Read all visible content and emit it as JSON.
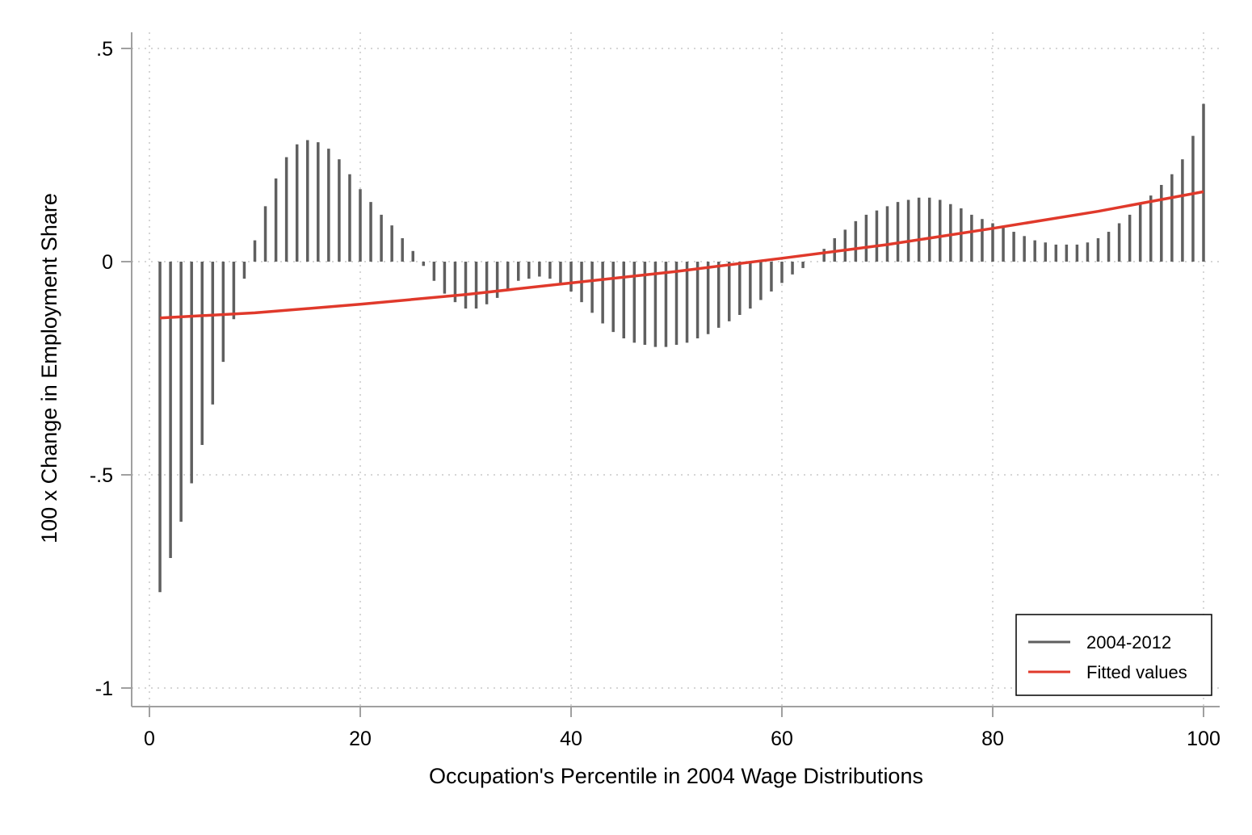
{
  "chart_data": {
    "type": "bar",
    "xlabel": "Occupation's Percentile in 2004 Wage Distributions",
    "ylabel": "100 x Change in Employment Share",
    "xlim": [
      0,
      100
    ],
    "ylim": [
      -1,
      0.5
    ],
    "xticks": [
      0,
      20,
      40,
      60,
      80,
      100
    ],
    "xtick_labels": [
      "0",
      "20",
      "40",
      "60",
      "80",
      "100"
    ],
    "yticks": [
      0.5,
      0,
      -0.5,
      -1
    ],
    "ytick_labels": [
      ".5",
      "0",
      "-.5",
      "-1"
    ],
    "grid": true,
    "legend_position": "bottom-right",
    "colors": {
      "bars": "#5f5f5f",
      "fit": "#e0392b",
      "axis": "#a0a0a0",
      "grid": "#c8c8c8"
    },
    "series": [
      {
        "name": "2004-2012",
        "kind": "spike",
        "x": [
          1,
          2,
          3,
          4,
          5,
          6,
          7,
          8,
          9,
          10,
          11,
          12,
          13,
          14,
          15,
          16,
          17,
          18,
          19,
          20,
          21,
          22,
          23,
          24,
          25,
          26,
          27,
          28,
          29,
          30,
          31,
          32,
          33,
          34,
          35,
          36,
          37,
          38,
          39,
          40,
          41,
          42,
          43,
          44,
          45,
          46,
          47,
          48,
          49,
          50,
          51,
          52,
          53,
          54,
          55,
          56,
          57,
          58,
          59,
          60,
          61,
          62,
          63,
          64,
          65,
          66,
          67,
          68,
          69,
          70,
          71,
          72,
          73,
          74,
          75,
          76,
          77,
          78,
          79,
          80,
          81,
          82,
          83,
          84,
          85,
          86,
          87,
          88,
          89,
          90,
          91,
          92,
          93,
          94,
          95,
          96,
          97,
          98,
          99,
          100
        ],
        "values": [
          -0.775,
          -0.695,
          -0.61,
          -0.52,
          -0.43,
          -0.335,
          -0.235,
          -0.135,
          -0.04,
          0.05,
          0.13,
          0.195,
          0.245,
          0.275,
          0.285,
          0.28,
          0.265,
          0.24,
          0.205,
          0.17,
          0.14,
          0.11,
          0.085,
          0.055,
          0.025,
          -0.01,
          -0.045,
          -0.075,
          -0.095,
          -0.11,
          -0.11,
          -0.1,
          -0.085,
          -0.065,
          -0.045,
          -0.04,
          -0.035,
          -0.04,
          -0.05,
          -0.07,
          -0.095,
          -0.12,
          -0.145,
          -0.165,
          -0.18,
          -0.19,
          -0.195,
          -0.2,
          -0.2,
          -0.195,
          -0.19,
          -0.18,
          -0.17,
          -0.155,
          -0.14,
          -0.125,
          -0.11,
          -0.09,
          -0.07,
          -0.05,
          -0.03,
          -0.015,
          0.0,
          0.03,
          0.055,
          0.075,
          0.095,
          0.11,
          0.12,
          0.13,
          0.14,
          0.145,
          0.15,
          0.15,
          0.145,
          0.135,
          0.125,
          0.11,
          0.1,
          0.09,
          0.08,
          0.07,
          0.06,
          0.05,
          0.045,
          0.04,
          0.04,
          0.04,
          0.045,
          0.055,
          0.07,
          0.09,
          0.11,
          0.135,
          0.155,
          0.18,
          0.205,
          0.24,
          0.295,
          0.37
        ]
      },
      {
        "name": "Fitted values",
        "kind": "line",
        "x": [
          1,
          10,
          20,
          30,
          40,
          50,
          60,
          70,
          80,
          90,
          100
        ],
        "values": [
          -0.132,
          -0.12,
          -0.1,
          -0.077,
          -0.05,
          -0.023,
          0.008,
          0.04,
          0.078,
          0.118,
          0.164
        ]
      }
    ]
  }
}
